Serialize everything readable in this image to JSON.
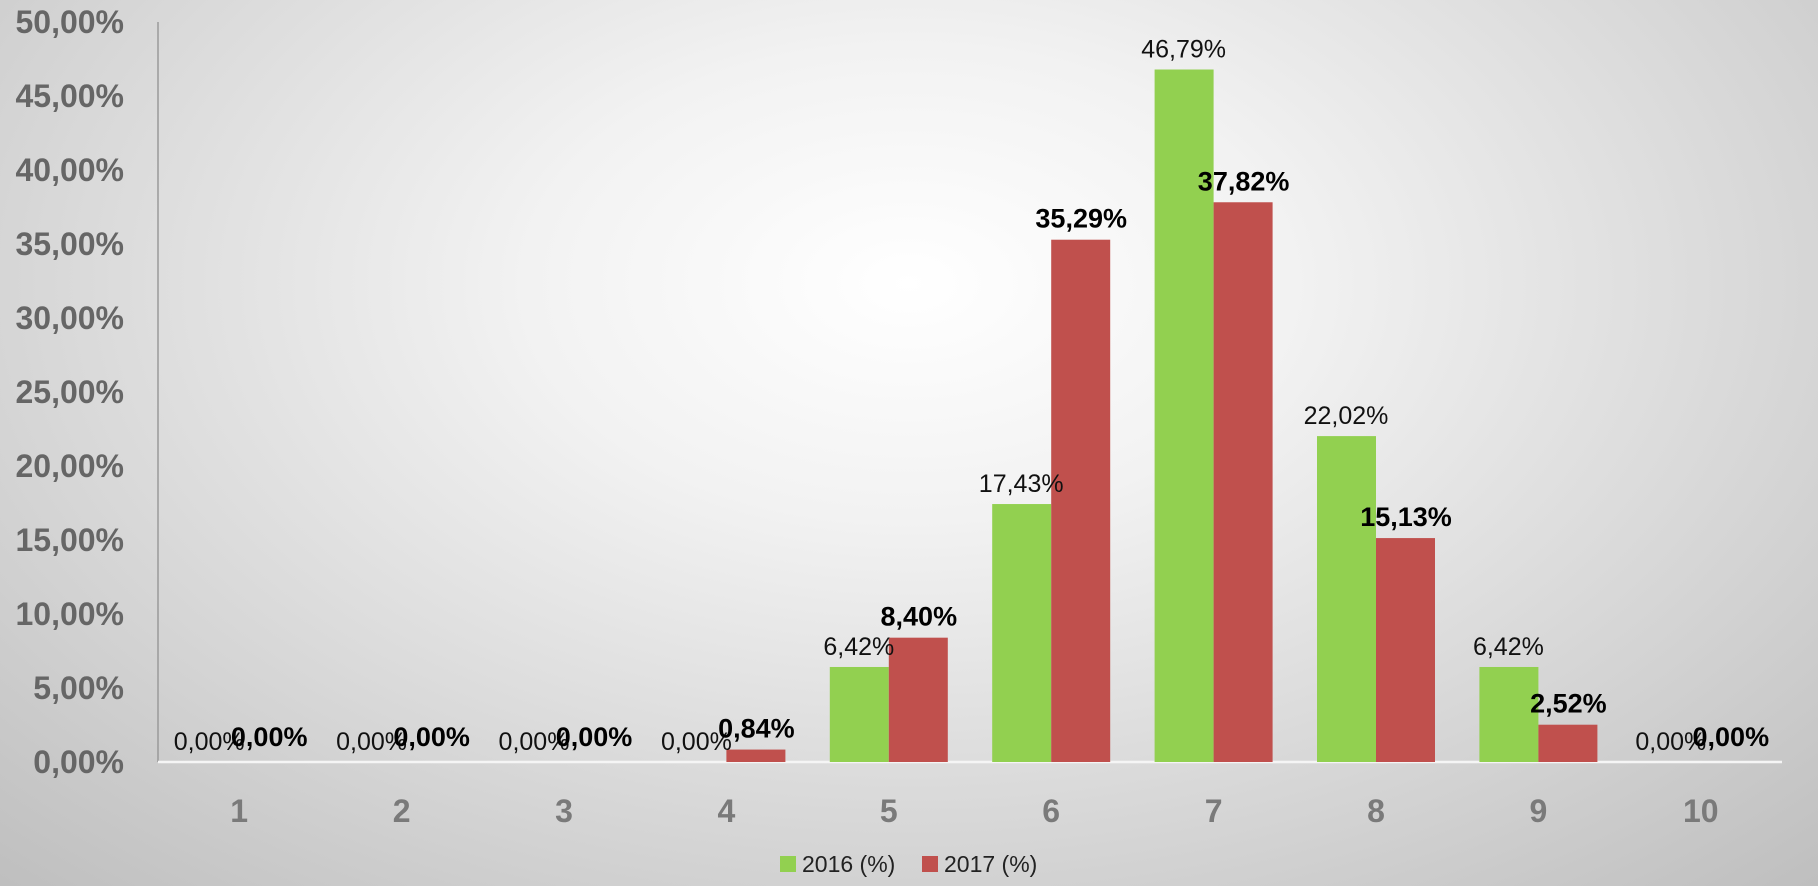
{
  "chart_data": {
    "type": "bar",
    "categories": [
      "1",
      "2",
      "3",
      "4",
      "5",
      "6",
      "7",
      "8",
      "9",
      "10"
    ],
    "series": [
      {
        "name": "2016 (%)",
        "color": "#92d050",
        "values": [
          0,
          0,
          0,
          0,
          6.42,
          17.43,
          46.79,
          22.02,
          6.42,
          0
        ],
        "labels": [
          "0,00%",
          "0,00%",
          "0,00%",
          "0,00%",
          "6,42%",
          "17,43%",
          "46,79%",
          "22,02%",
          "6,42%",
          "0,00%"
        ]
      },
      {
        "name": "2017 (%)",
        "color": "#c0504d",
        "values": [
          0,
          0,
          0,
          0.84,
          8.4,
          35.29,
          37.82,
          15.13,
          2.52,
          0
        ],
        "labels": [
          "0,00%",
          "0,00%",
          "0,00%",
          "0,84%",
          "8,40%",
          "35,29%",
          "37,82%",
          "15,13%",
          "2,52%",
          "0,00%"
        ]
      }
    ],
    "ylim": [
      0,
      50
    ],
    "ytick_values": [
      0,
      5,
      10,
      15,
      20,
      25,
      30,
      35,
      40,
      45,
      50
    ],
    "ytick_labels": [
      "0,00%",
      "5,00%",
      "10,00%",
      "15,00%",
      "20,00%",
      "25,00%",
      "30,00%",
      "35,00%",
      "40,00%",
      "45,00%",
      "50,00%"
    ],
    "grid": false,
    "legend_position": "bottom",
    "title": "",
    "xlabel": "",
    "ylabel": ""
  }
}
